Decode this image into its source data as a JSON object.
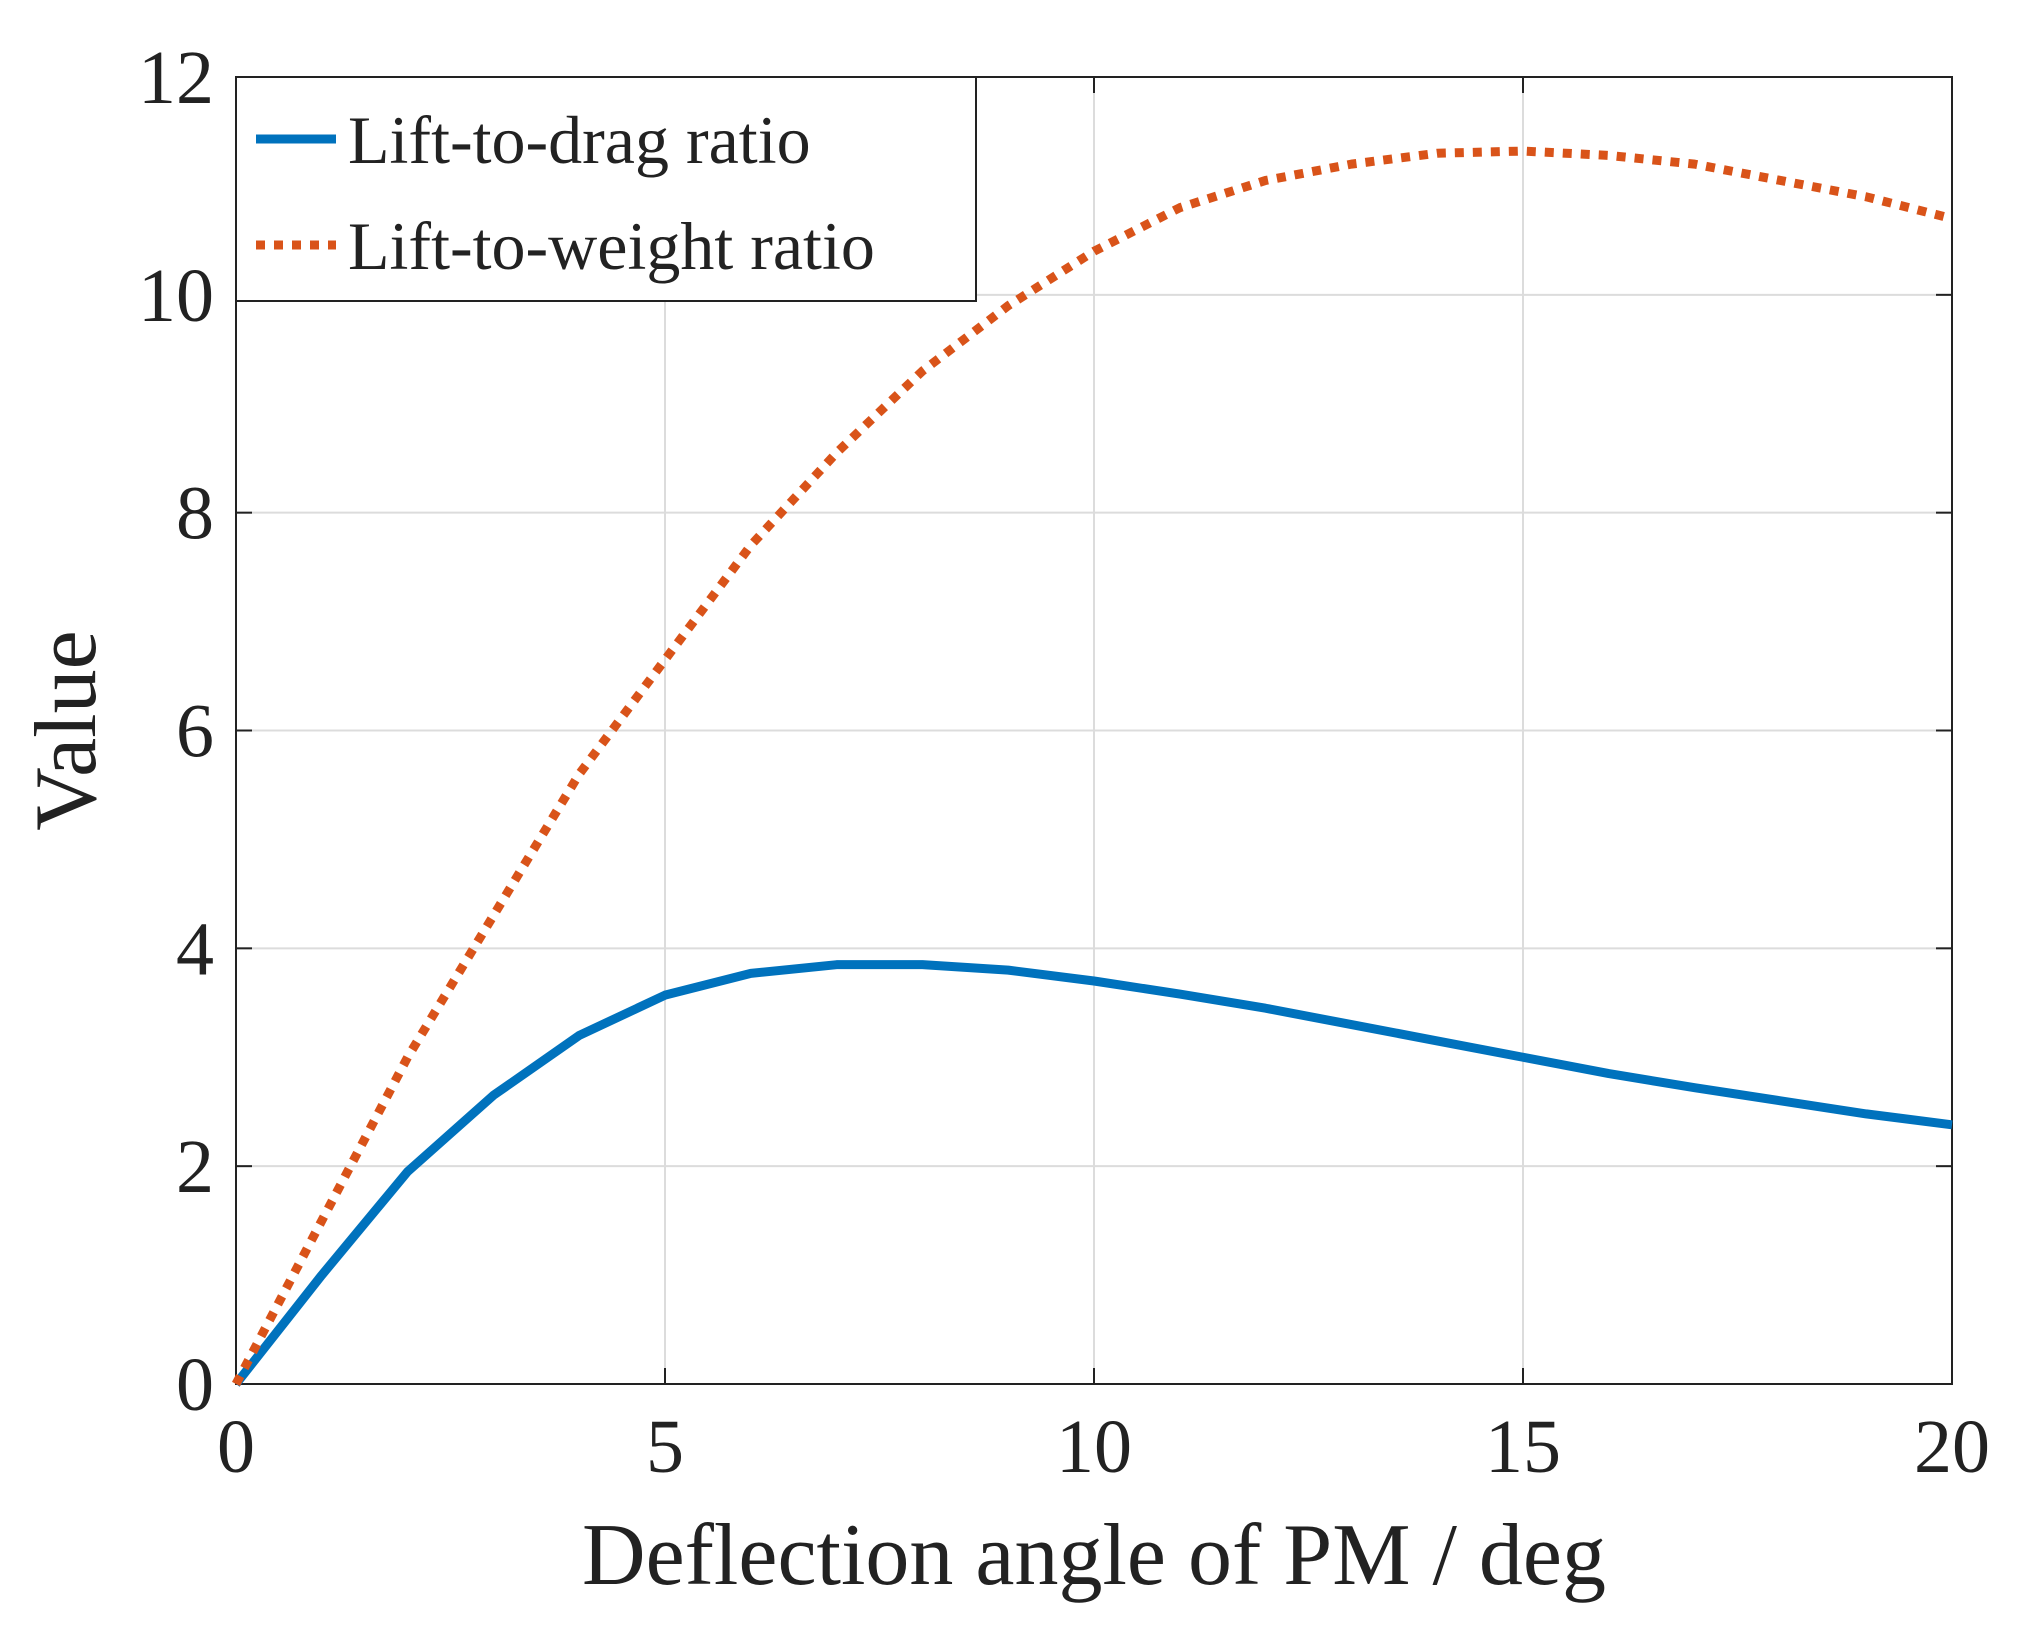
{
  "chart_data": {
    "type": "line",
    "xlabel": "Deflection angle of PM / deg",
    "ylabel": "Value",
    "x": [
      0,
      1,
      2,
      3,
      4,
      5,
      6,
      7,
      8,
      9,
      10,
      11,
      12,
      13,
      14,
      15,
      16,
      17,
      18,
      19,
      20
    ],
    "series": [
      {
        "name": "Lift-to-drag ratio",
        "color": "#0072bd",
        "dash": "solid",
        "values": [
          0,
          1.0,
          1.95,
          2.65,
          3.2,
          3.57,
          3.77,
          3.85,
          3.85,
          3.8,
          3.7,
          3.58,
          3.45,
          3.3,
          3.15,
          3.0,
          2.85,
          2.72,
          2.6,
          2.48,
          2.38
        ]
      },
      {
        "name": "Lift-to-weight ratio",
        "color": "#d95319",
        "dash": "dotted",
        "values": [
          0,
          1.5,
          3.0,
          4.3,
          5.6,
          6.65,
          7.7,
          8.55,
          9.3,
          9.9,
          10.4,
          10.8,
          11.05,
          11.2,
          11.3,
          11.32,
          11.28,
          11.2,
          11.05,
          10.9,
          10.7
        ]
      }
    ],
    "xlim": [
      0,
      20
    ],
    "xticks": [
      0,
      5,
      10,
      15,
      20
    ],
    "ylim": [
      0,
      12
    ],
    "yticks": [
      0,
      2,
      4,
      6,
      8,
      10,
      12
    ],
    "grid": true,
    "legend": "upper-left"
  }
}
